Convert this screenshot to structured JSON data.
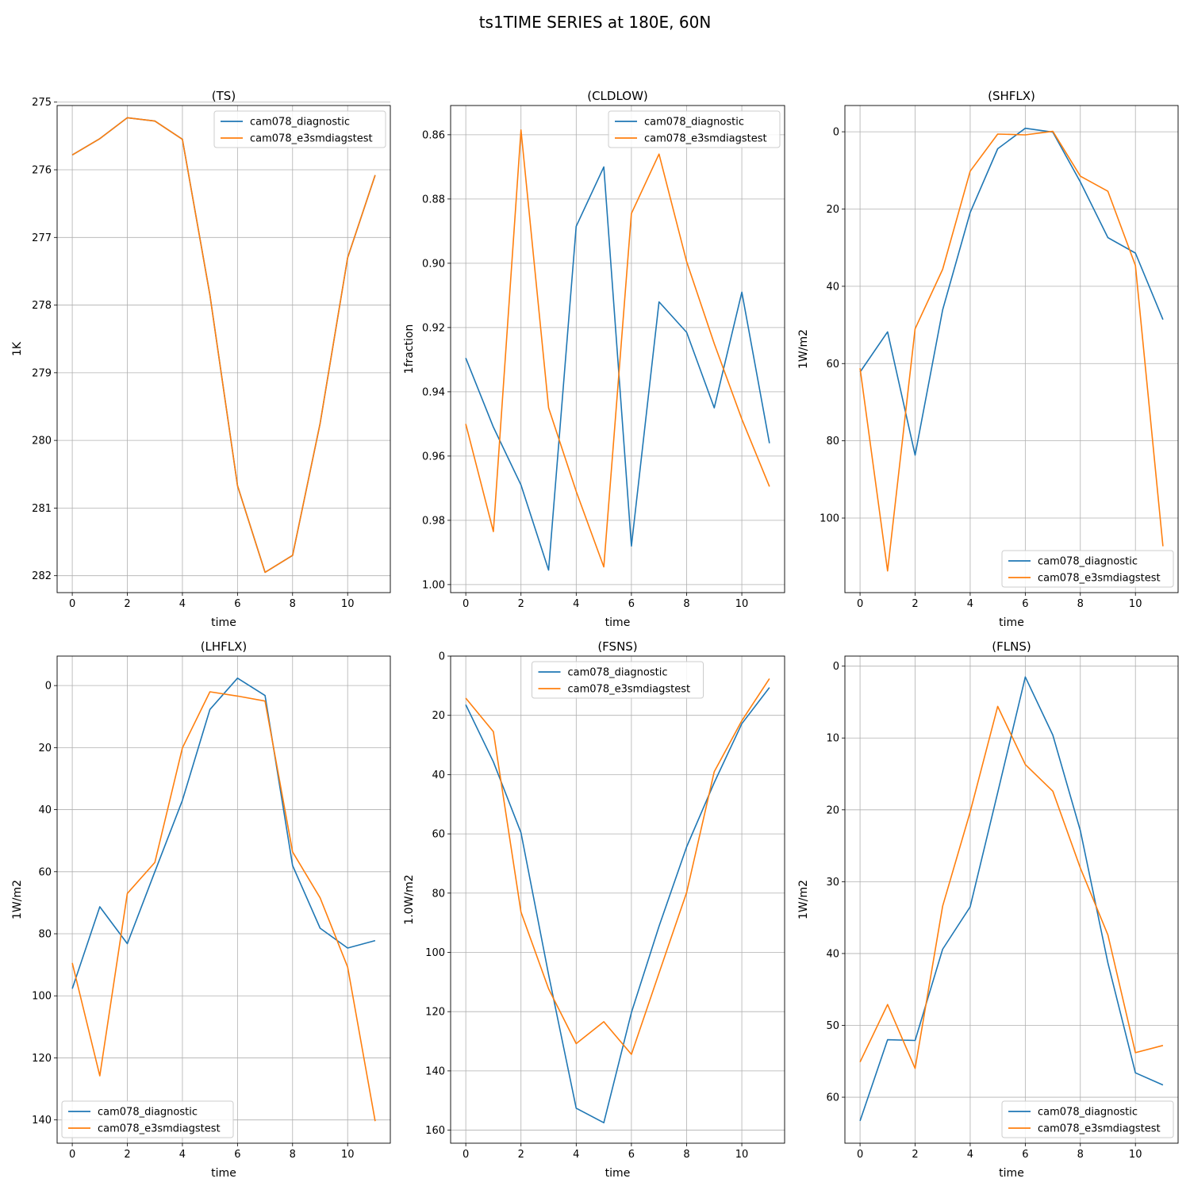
{
  "figure": {
    "title": "ts1TIME SERIES at 180E, 60N",
    "colors": {
      "series_1": "#1f77b4",
      "series_2": "#ff7f0e",
      "grid": "#b0b0b0"
    }
  },
  "chart_data": [
    {
      "type": "line",
      "title": "(TS)",
      "xlabel": "time",
      "ylabel": "1K",
      "xlim": [
        -0.55,
        11.55
      ],
      "ylim": [
        275.05,
        282.25
      ],
      "y_inverted": true,
      "xticks": [
        0,
        2,
        4,
        6,
        8,
        10
      ],
      "yticks": [
        275,
        276,
        277,
        278,
        279,
        280,
        281,
        282
      ],
      "grid": true,
      "legend": "top-right",
      "x": [
        0,
        1,
        2,
        3,
        4,
        5,
        6,
        7,
        8,
        9,
        10,
        11
      ],
      "series": [
        {
          "name": "cam078_diagnostic",
          "values": [
            275.78,
            275.54,
            275.23,
            275.28,
            275.55,
            277.85,
            280.67,
            281.95,
            281.7,
            279.75,
            277.3,
            276.08
          ]
        },
        {
          "name": "cam078_e3smdiagstest",
          "values": [
            275.78,
            275.54,
            275.23,
            275.28,
            275.55,
            277.85,
            280.67,
            281.95,
            281.7,
            279.75,
            277.3,
            276.08
          ]
        }
      ]
    },
    {
      "type": "line",
      "title": "(CLDLOW)",
      "xlabel": "time",
      "ylabel": "1fraction",
      "xlim": [
        -0.55,
        11.55
      ],
      "ylim": [
        0.8509,
        1.0025
      ],
      "y_inverted": true,
      "xticks": [
        0,
        2,
        4,
        6,
        8,
        10
      ],
      "yticks": [
        0.86,
        0.88,
        0.9,
        0.92,
        0.94,
        0.96,
        0.98,
        1.0
      ],
      "ytick_labels": [
        "0.86",
        "0.88",
        "0.90",
        "0.92",
        "0.94",
        "0.96",
        "0.98",
        "1.00"
      ],
      "grid": true,
      "legend": "top-right",
      "x": [
        0,
        1,
        2,
        3,
        4,
        5,
        6,
        7,
        8,
        9,
        10,
        11
      ],
      "series": [
        {
          "name": "cam078_diagnostic",
          "values": [
            0.9295,
            0.951,
            0.969,
            0.9955,
            0.8885,
            0.87,
            0.988,
            0.912,
            0.9215,
            0.945,
            0.909,
            0.956
          ]
        },
        {
          "name": "cam078_e3smdiagstest",
          "values": [
            0.95,
            0.9835,
            0.8585,
            0.945,
            0.971,
            0.9945,
            0.8845,
            0.866,
            0.8995,
            0.925,
            0.9485,
            0.9695
          ]
        }
      ]
    },
    {
      "type": "line",
      "title": "(SHFLX)",
      "xlabel": "time",
      "ylabel": "1W/m2",
      "xlim": [
        -0.55,
        11.55
      ],
      "ylim": [
        -6.8,
        119.3
      ],
      "y_inverted": true,
      "xticks": [
        0,
        2,
        4,
        6,
        8,
        10
      ],
      "yticks": [
        0,
        20,
        40,
        60,
        80,
        100
      ],
      "grid": true,
      "legend": "bottom-right",
      "x": [
        0,
        1,
        2,
        3,
        4,
        5,
        6,
        7,
        8,
        9,
        10,
        11
      ],
      "series": [
        {
          "name": "cam078_diagnostic",
          "values": [
            62.2,
            51.8,
            83.7,
            46.1,
            20.9,
            4.4,
            -0.9,
            0.1,
            13.0,
            27.4,
            31.4,
            48.6
          ]
        },
        {
          "name": "cam078_e3smdiagstest",
          "values": [
            61.2,
            113.7,
            51.0,
            35.6,
            10.2,
            0.6,
            0.8,
            -0.1,
            11.5,
            15.4,
            34.6,
            107.3
          ]
        }
      ]
    },
    {
      "type": "line",
      "title": "(LHFLX)",
      "xlabel": "time",
      "ylabel": "1W/m2",
      "xlim": [
        -0.55,
        11.55
      ],
      "ylim": [
        -9.5,
        147.5
      ],
      "y_inverted": true,
      "xticks": [
        0,
        2,
        4,
        6,
        8,
        10
      ],
      "yticks": [
        0,
        20,
        40,
        60,
        80,
        100,
        120,
        140
      ],
      "grid": true,
      "legend": "bottom-left",
      "x": [
        0,
        1,
        2,
        3,
        4,
        5,
        6,
        7,
        8,
        9,
        10,
        11
      ],
      "series": [
        {
          "name": "cam078_diagnostic",
          "values": [
            97.7,
            71.3,
            83.2,
            60.0,
            37.0,
            7.7,
            -2.4,
            3.2,
            58.0,
            78.2,
            84.6,
            82.2
          ]
        },
        {
          "name": "cam078_e3smdiagstest",
          "values": [
            89.4,
            125.8,
            67.0,
            57.0,
            20.1,
            2.0,
            3.4,
            5.0,
            53.6,
            68.4,
            90.7,
            140.4
          ]
        }
      ]
    },
    {
      "type": "line",
      "title": "(FSNS)",
      "xlabel": "time",
      "ylabel": "1.0W/m2",
      "xlim": [
        -0.55,
        11.55
      ],
      "ylim": [
        0,
        164.4
      ],
      "y_inverted": true,
      "xticks": [
        0,
        2,
        4,
        6,
        8,
        10
      ],
      "yticks": [
        0,
        20,
        40,
        60,
        80,
        100,
        120,
        140,
        160
      ],
      "grid": true,
      "legend": "top-center",
      "x": [
        0,
        1,
        2,
        3,
        4,
        5,
        6,
        7,
        8,
        9,
        10,
        11
      ],
      "series": [
        {
          "name": "cam078_diagnostic",
          "values": [
            16.4,
            35.7,
            59.6,
            107.5,
            152.6,
            157.5,
            120.3,
            91.2,
            64.4,
            42.7,
            22.8,
            10.6
          ]
        },
        {
          "name": "cam078_e3smdiagstest",
          "values": [
            14.2,
            25.5,
            86.4,
            112.3,
            130.8,
            123.4,
            134.4,
            107.0,
            79.8,
            39.0,
            21.8,
            7.6
          ]
        }
      ]
    },
    {
      "type": "line",
      "title": "(FLNS)",
      "xlabel": "time",
      "ylabel": "1W/m2",
      "xlim": [
        -0.55,
        11.55
      ],
      "ylim": [
        -1.4,
        66.4
      ],
      "y_inverted": true,
      "xticks": [
        0,
        2,
        4,
        6,
        8,
        10
      ],
      "yticks": [
        0,
        10,
        20,
        30,
        40,
        50,
        60
      ],
      "grid": true,
      "legend": "bottom-right",
      "x": [
        0,
        1,
        2,
        3,
        4,
        5,
        6,
        7,
        8,
        9,
        10,
        11
      ],
      "series": [
        {
          "name": "cam078_diagnostic",
          "values": [
            63.3,
            52.0,
            52.1,
            39.4,
            33.5,
            17.6,
            1.5,
            9.6,
            22.9,
            41.3,
            56.6,
            58.3
          ]
        },
        {
          "name": "cam078_e3smdiagstest",
          "values": [
            55.1,
            47.1,
            56.0,
            33.4,
            20.3,
            5.6,
            13.7,
            17.4,
            28.1,
            37.4,
            53.8,
            52.8
          ]
        }
      ]
    }
  ]
}
